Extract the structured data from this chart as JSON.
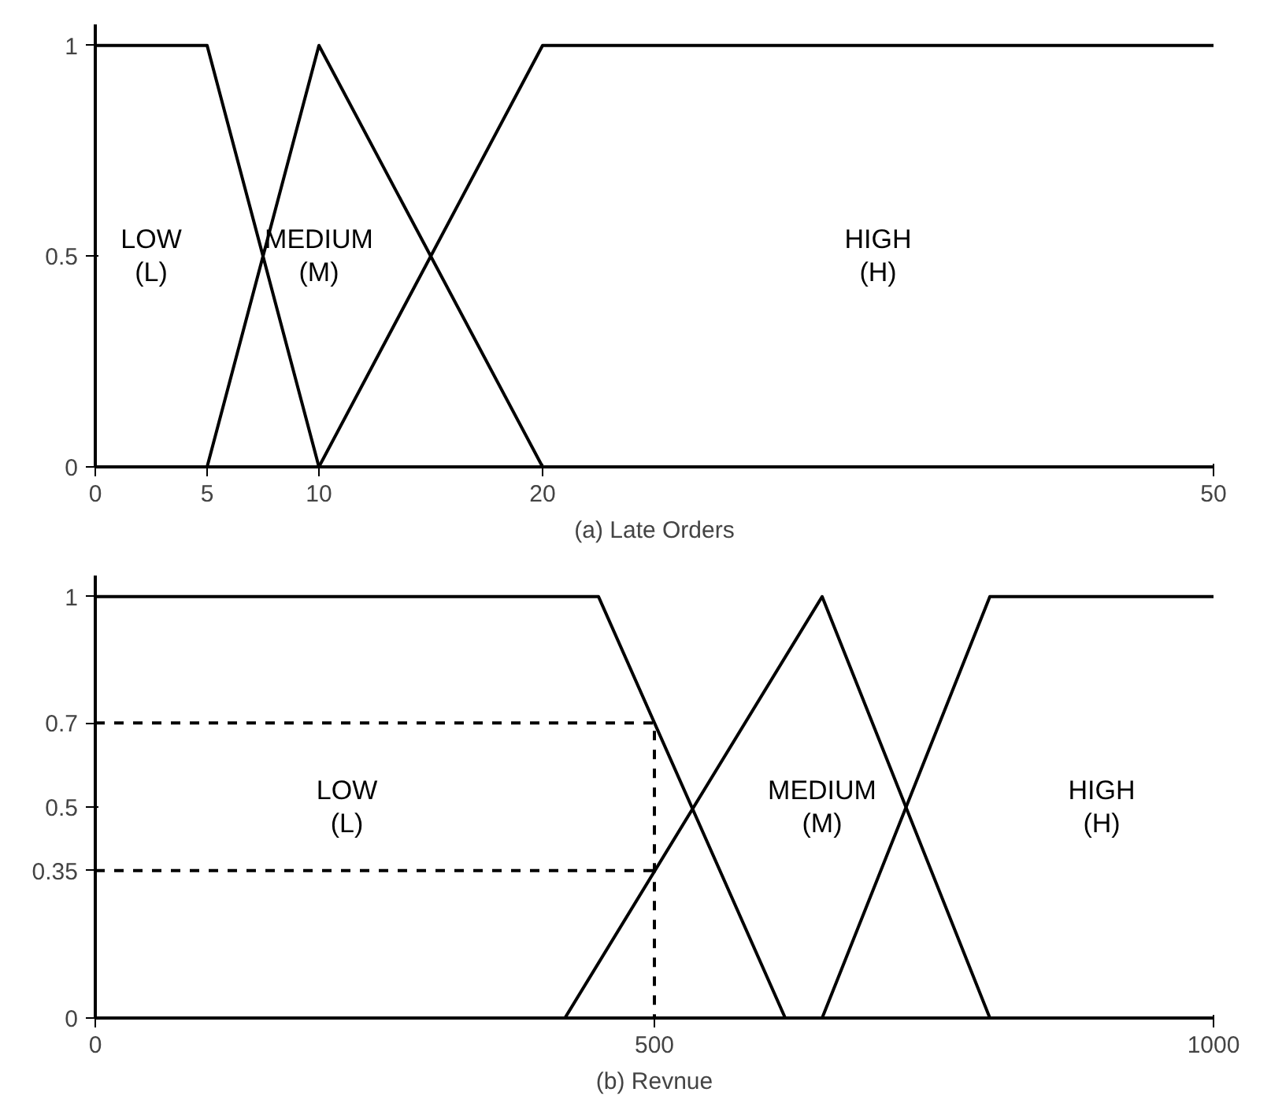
{
  "chart_data": [
    {
      "type": "line",
      "title": "(a) Late Orders",
      "xlim": [
        0,
        50
      ],
      "ylim": [
        0,
        1.05
      ],
      "xticks": [
        0,
        5,
        10,
        20,
        50
      ],
      "yticks": [
        0,
        0.5,
        1
      ],
      "series": [
        {
          "x": [
            0,
            5,
            10
          ],
          "values": [
            1,
            1,
            0
          ],
          "color": "#000000",
          "line_style": "solid"
        },
        {
          "x": [
            5,
            10,
            20
          ],
          "values": [
            0,
            1,
            0
          ],
          "color": "#000000",
          "line_style": "solid"
        },
        {
          "x": [
            10,
            20,
            50
          ],
          "values": [
            0,
            1,
            1
          ],
          "color": "#000000",
          "line_style": "solid"
        }
      ],
      "annotations": [
        "LOW\n(L)",
        "MEDIUM\n(M)",
        "HIGH\n(H)"
      ]
    },
    {
      "type": "line",
      "title": "(b) Revnue",
      "xlim": [
        0,
        1000
      ],
      "ylim": [
        0,
        1.05
      ],
      "xticks": [
        0,
        500,
        1000
      ],
      "yticks": [
        0,
        0.35,
        0.5,
        0.7,
        1
      ],
      "series": [
        {
          "x": [
            0,
            450,
            617
          ],
          "values": [
            1,
            1,
            0
          ],
          "color": "#000000",
          "line_style": "solid"
        },
        {
          "x": [
            420,
            650,
            800
          ],
          "values": [
            0,
            1,
            0
          ],
          "color": "#000000",
          "line_style": "solid"
        },
        {
          "x": [
            650,
            800,
            1000
          ],
          "values": [
            0,
            1,
            1
          ],
          "color": "#000000",
          "line_style": "solid"
        },
        {
          "x": [
            0,
            500,
            500
          ],
          "values": [
            0.7,
            0.7,
            0
          ],
          "color": "#000000",
          "line_style": "dashed"
        },
        {
          "x": [
            0,
            500
          ],
          "values": [
            0.35,
            0.35
          ],
          "color": "#000000",
          "line_style": "dashed"
        }
      ],
      "annotations": [
        "LOW\n(L)",
        "MEDIUM\n(M)",
        "HIGH\n(H)"
      ]
    }
  ]
}
